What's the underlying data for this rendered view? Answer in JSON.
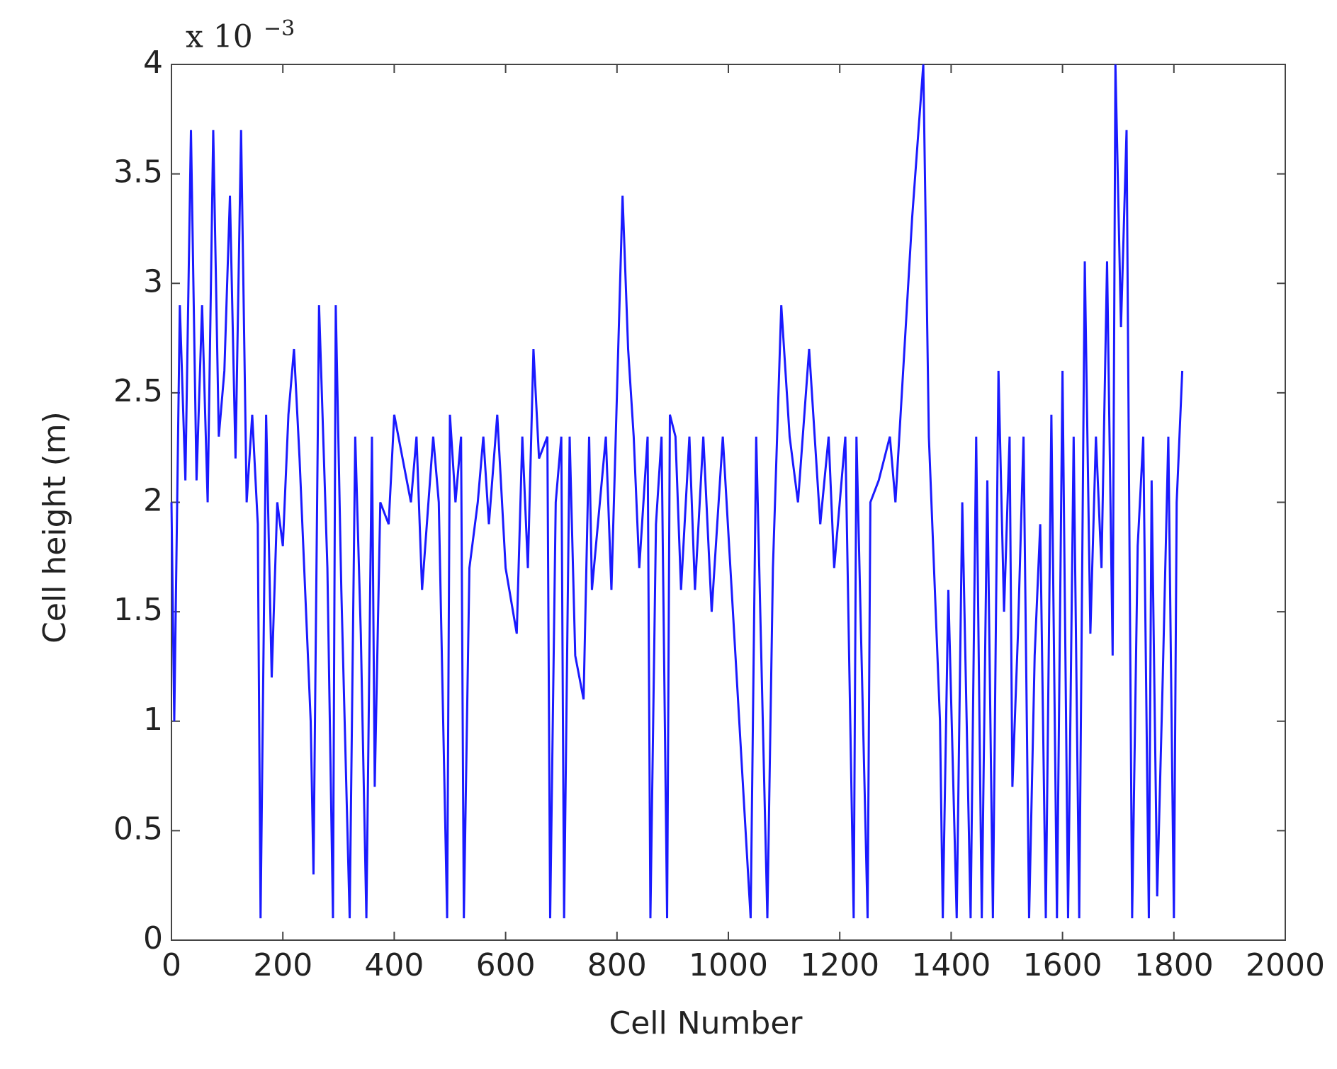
{
  "chart_data": {
    "type": "line",
    "xlabel": "Cell Number",
    "ylabel": "Cell height (m)",
    "scale_base": "x 10",
    "scale_exponent": "−3",
    "xlim": [
      0,
      2000
    ],
    "xticks": [
      0,
      200,
      400,
      600,
      800,
      1000,
      1200,
      1400,
      1600,
      1800,
      2000
    ],
    "ylim": [
      0,
      4
    ],
    "yticks": [
      0,
      0.5,
      1,
      1.5,
      2,
      2.5,
      3,
      3.5,
      4
    ],
    "series": [
      {
        "color": "#1a1aff",
        "x": [
          0,
          5,
          15,
          25,
          35,
          45,
          55,
          65,
          75,
          85,
          95,
          105,
          115,
          125,
          135,
          145,
          155,
          160,
          170,
          180,
          190,
          200,
          210,
          220,
          230,
          240,
          250,
          255,
          265,
          280,
          290,
          295,
          305,
          320,
          330,
          340,
          350,
          360,
          365,
          375,
          390,
          400,
          430,
          440,
          450,
          470,
          480,
          495,
          500,
          510,
          520,
          525,
          535,
          550,
          560,
          570,
          585,
          600,
          620,
          630,
          640,
          650,
          660,
          675,
          680,
          690,
          700,
          705,
          715,
          725,
          740,
          750,
          755,
          780,
          790,
          810,
          820,
          830,
          840,
          855,
          860,
          870,
          880,
          890,
          895,
          905,
          915,
          930,
          940,
          955,
          970,
          990,
          1040,
          1050,
          1070,
          1080,
          1095,
          1110,
          1125,
          1145,
          1165,
          1180,
          1190,
          1210,
          1225,
          1230,
          1250,
          1255,
          1270,
          1290,
          1300,
          1330,
          1350,
          1360,
          1380,
          1385,
          1395,
          1410,
          1420,
          1435,
          1445,
          1455,
          1465,
          1475,
          1485,
          1495,
          1505,
          1510,
          1520,
          1530,
          1540,
          1550,
          1560,
          1570,
          1580,
          1590,
          1600,
          1610,
          1620,
          1630,
          1640,
          1650,
          1660,
          1670,
          1680,
          1690,
          1695,
          1705,
          1715,
          1725,
          1735,
          1745,
          1755,
          1760,
          1770,
          1780,
          1790,
          1800,
          1805,
          1815
        ],
        "values": [
          2.0,
          1.0,
          2.9,
          2.1,
          3.7,
          2.1,
          2.9,
          2.0,
          3.7,
          2.3,
          2.6,
          3.4,
          2.2,
          3.7,
          2.0,
          2.4,
          1.9,
          0.1,
          2.4,
          1.2,
          2.0,
          1.8,
          2.4,
          2.7,
          2.2,
          1.6,
          1.0,
          0.3,
          2.9,
          1.7,
          0.1,
          2.9,
          1.6,
          0.1,
          2.3,
          1.4,
          0.1,
          2.3,
          0.7,
          2.0,
          1.9,
          2.4,
          2.0,
          2.3,
          1.6,
          2.3,
          2.0,
          0.1,
          2.4,
          2.0,
          2.3,
          0.1,
          1.7,
          2.0,
          2.3,
          1.9,
          2.4,
          1.7,
          1.4,
          2.3,
          1.7,
          2.7,
          2.2,
          2.3,
          0.1,
          2.0,
          2.3,
          0.1,
          2.3,
          1.3,
          1.1,
          2.3,
          1.6,
          2.3,
          1.6,
          3.4,
          2.7,
          2.3,
          1.7,
          2.3,
          0.1,
          1.9,
          2.3,
          0.1,
          2.4,
          2.3,
          1.6,
          2.3,
          1.6,
          2.3,
          1.5,
          2.3,
          0.1,
          2.3,
          0.1,
          1.7,
          2.9,
          2.3,
          2.0,
          2.7,
          1.9,
          2.3,
          1.7,
          2.3,
          0.1,
          2.3,
          0.1,
          2.0,
          2.1,
          2.3,
          2.0,
          3.3,
          4.0,
          2.3,
          1.0,
          0.1,
          1.6,
          0.1,
          2.0,
          0.1,
          2.3,
          0.1,
          2.1,
          0.1,
          2.6,
          1.5,
          2.3,
          0.7,
          1.4,
          2.3,
          0.1,
          1.3,
          1.9,
          0.1,
          2.4,
          0.1,
          2.6,
          0.1,
          2.3,
          0.1,
          3.1,
          1.4,
          2.3,
          1.7,
          3.1,
          1.3,
          4.0,
          2.8,
          3.7,
          0.1,
          1.8,
          2.3,
          0.1,
          2.1,
          0.2,
          1.2,
          2.3,
          0.1,
          2.0,
          2.6
        ]
      }
    ]
  }
}
